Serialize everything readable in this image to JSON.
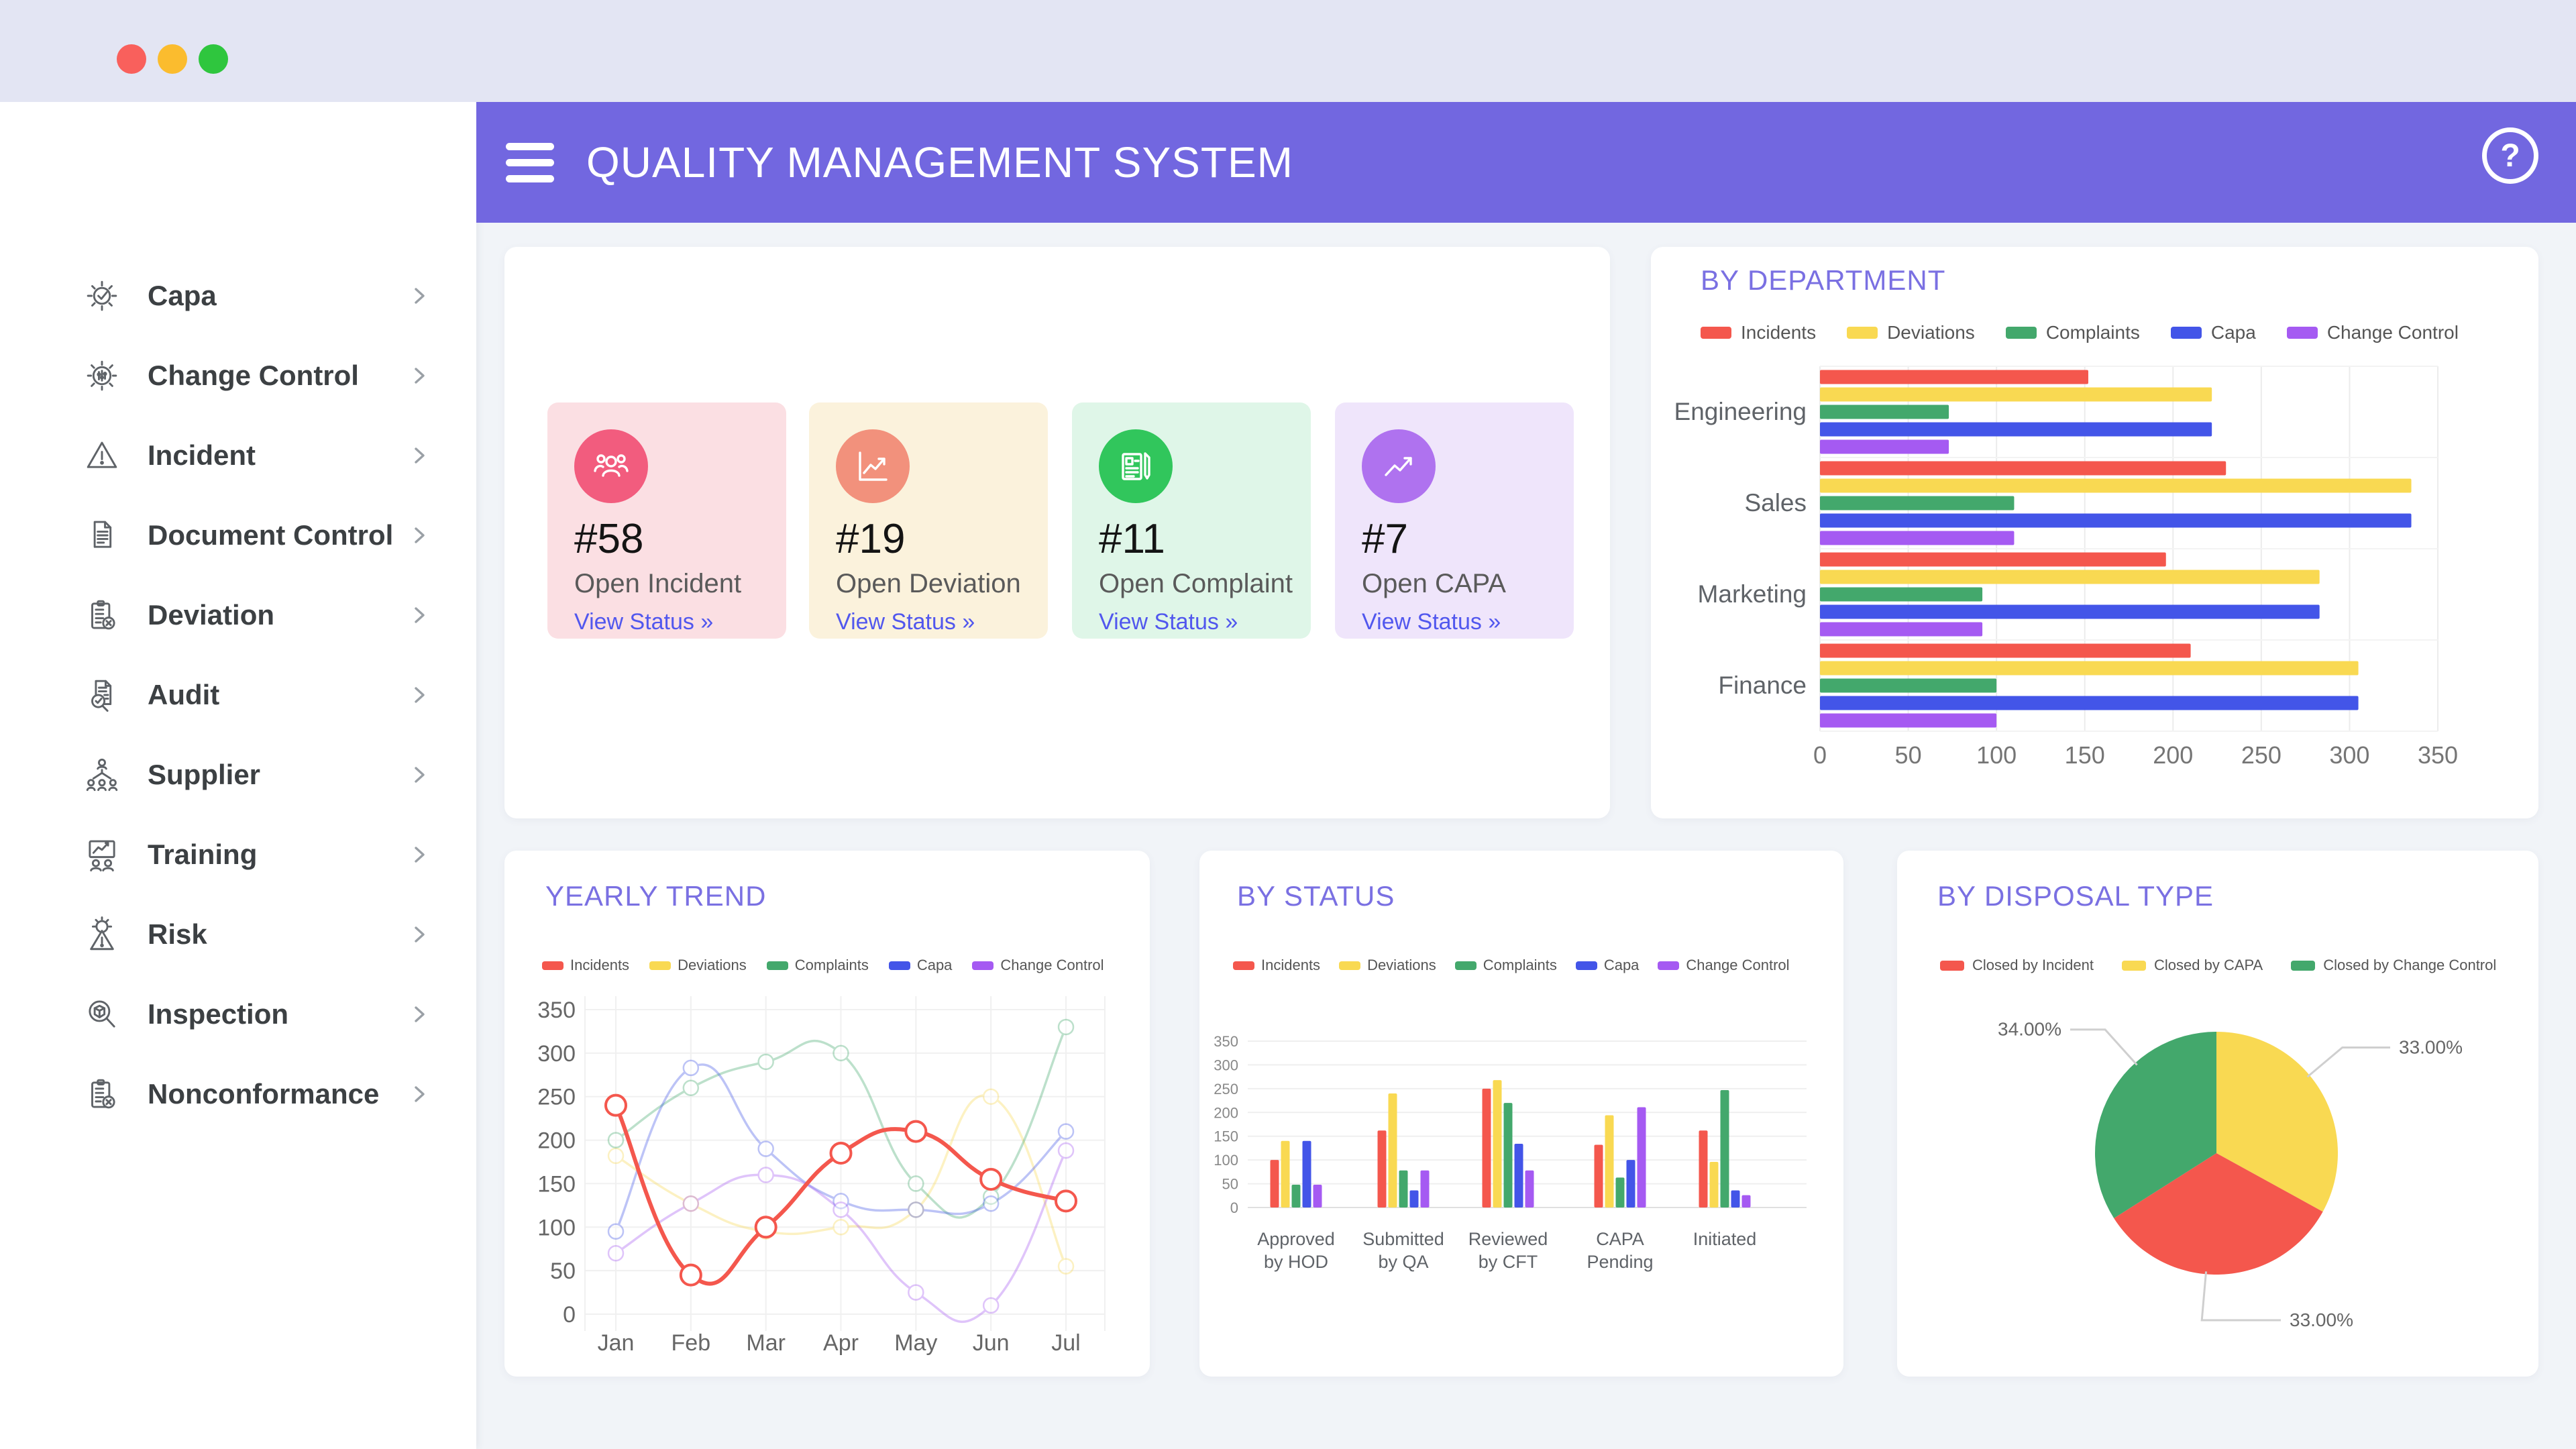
{
  "topbar": {
    "dot_colors": [
      "#F9605C",
      "#FBBC2E",
      "#2FC63E"
    ]
  },
  "header": {
    "title": "QUALITY MANAGEMENT SYSTEM",
    "help_label": "?",
    "bg": "#7267E0"
  },
  "sidebar": {
    "items": [
      {
        "label": "Capa",
        "icon": "capa-gear-check-icon"
      },
      {
        "label": "Change Control",
        "icon": "change-control-gear-sliders-icon"
      },
      {
        "label": "Incident",
        "icon": "warning-triangle-icon"
      },
      {
        "label": "Document Control",
        "icon": "document-icon"
      },
      {
        "label": "Deviation",
        "icon": "clipboard-x-icon"
      },
      {
        "label": "Audit",
        "icon": "audit-doc-magnifier-icon"
      },
      {
        "label": "Supplier",
        "icon": "org-chart-people-icon"
      },
      {
        "label": "Training",
        "icon": "training-presentation-icon"
      },
      {
        "label": "Risk",
        "icon": "risk-gear-warning-icon"
      },
      {
        "label": "Inspection",
        "icon": "inspection-magnifier-box-icon"
      },
      {
        "label": "Nonconformance",
        "icon": "clipboard-x-icon"
      }
    ]
  },
  "stats": {
    "cards": [
      {
        "number": "#58",
        "label": "Open Incident",
        "link": "View Status »",
        "bg": "#FBDFE3",
        "accent": "#F25C7E",
        "icon": "people-icon"
      },
      {
        "number": "#19",
        "label": "Open Deviation",
        "link": "View Status »",
        "bg": "#FBF2DC",
        "accent": "#F2917C",
        "icon": "line-chart-icon"
      },
      {
        "number": "#11",
        "label": "Open Complaint",
        "link": "View Status »",
        "bg": "#DFF6E8",
        "accent": "#31C65C",
        "icon": "newspaper-icon"
      },
      {
        "number": "#7",
        "label": "Open CAPA",
        "link": "View Status »",
        "bg": "#EFE5FB",
        "accent": "#AF72EF",
        "icon": "trending-up-icon"
      }
    ]
  },
  "series_colors": {
    "Incidents": "#F4574D",
    "Deviations": "#F9D952",
    "Complaints": "#43A86C",
    "Capa": "#4355E8",
    "Change Control": "#A55AF2"
  },
  "chart_data": [
    {
      "id": "by_department",
      "type": "bar",
      "orientation": "horizontal",
      "title": "BY DEPARTMENT",
      "categories": [
        "Engineering",
        "Sales",
        "Marketing",
        "Finance"
      ],
      "series": [
        {
          "name": "Incidents",
          "values": [
            152,
            230,
            196,
            210
          ]
        },
        {
          "name": "Deviations",
          "values": [
            222,
            335,
            283,
            305
          ]
        },
        {
          "name": "Complaints",
          "values": [
            73,
            110,
            92,
            100
          ]
        },
        {
          "name": "Capa",
          "values": [
            222,
            335,
            283,
            305
          ]
        },
        {
          "name": "Change Control",
          "values": [
            73,
            110,
            92,
            100
          ]
        }
      ],
      "xlim": [
        0,
        350
      ],
      "xticks": [
        0,
        50,
        100,
        150,
        200,
        250,
        300,
        350
      ],
      "legend_position": "top",
      "grid": true
    },
    {
      "id": "yearly_trend",
      "type": "line",
      "smooth": true,
      "title": "YEARLY TREND",
      "x": [
        "Jan",
        "Feb",
        "Mar",
        "Apr",
        "May",
        "Jun",
        "Jul"
      ],
      "series": [
        {
          "name": "Incidents",
          "values": [
            240,
            45,
            100,
            185,
            210,
            155,
            130
          ],
          "emphasis": true
        },
        {
          "name": "Deviations",
          "values": [
            182,
            127,
            95,
            100,
            120,
            250,
            55
          ]
        },
        {
          "name": "Complaints",
          "values": [
            200,
            260,
            290,
            300,
            150,
            135,
            330
          ]
        },
        {
          "name": "Capa",
          "values": [
            95,
            283,
            190,
            130,
            120,
            127,
            210
          ]
        },
        {
          "name": "Change Control",
          "values": [
            70,
            127,
            160,
            120,
            25,
            10,
            188
          ]
        }
      ],
      "ylim": [
        0,
        350
      ],
      "yticks": [
        0,
        50,
        100,
        150,
        200,
        250,
        300,
        350
      ],
      "legend_position": "top",
      "grid": true
    },
    {
      "id": "by_status",
      "type": "bar",
      "orientation": "vertical",
      "title": "BY STATUS",
      "categories": [
        [
          "Approved",
          "by HOD"
        ],
        [
          "Submitted",
          "by QA"
        ],
        [
          "Reviewed",
          "by CFT"
        ],
        [
          "CAPA",
          "Pending"
        ],
        [
          "Initiated"
        ]
      ],
      "series": [
        {
          "name": "Incidents",
          "values": [
            100,
            162,
            250,
            132,
            162
          ]
        },
        {
          "name": "Deviations",
          "values": [
            140,
            240,
            268,
            194,
            96
          ]
        },
        {
          "name": "Complaints",
          "values": [
            48,
            78,
            220,
            63,
            247
          ]
        },
        {
          "name": "Capa",
          "values": [
            140,
            36,
            134,
            100,
            36
          ]
        },
        {
          "name": "Change Control",
          "values": [
            48,
            78,
            78,
            211,
            26
          ]
        }
      ],
      "ylim": [
        0,
        350
      ],
      "yticks": [
        0,
        50,
        100,
        150,
        200,
        250,
        300,
        350
      ],
      "legend_position": "top",
      "grid": true
    },
    {
      "id": "by_disposal_type",
      "type": "pie",
      "title": "BY DISPOSAL TYPE",
      "slices": [
        {
          "label": "Closed by CAPA",
          "value": 33,
          "display": "33.00%",
          "color": "#F9D952"
        },
        {
          "label": "Closed by Incident",
          "value": 33,
          "display": "33.00%",
          "color": "#F4574D"
        },
        {
          "label": "Closed by Change Control",
          "value": 34,
          "display": "34.00%",
          "color": "#43A86C"
        }
      ],
      "legend": [
        {
          "label": "Closed by Incident",
          "color": "#F4574D"
        },
        {
          "label": "Closed by CAPA",
          "color": "#F9D952"
        },
        {
          "label": "Closed by Change Control",
          "color": "#43A86C"
        }
      ],
      "start_angle_deg": -90,
      "clockwise": true,
      "legend_position": "top"
    }
  ]
}
